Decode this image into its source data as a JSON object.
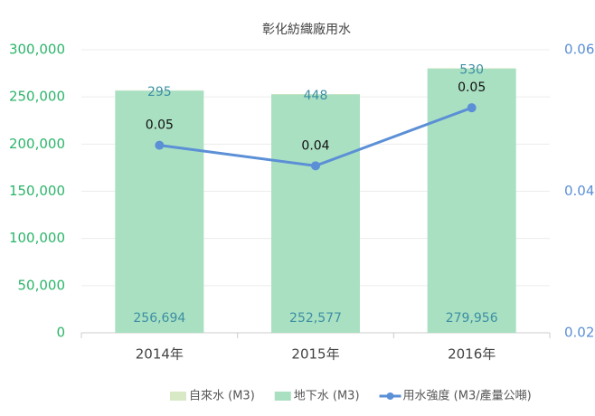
{
  "chart_data": {
    "type": "bar",
    "stacked": true,
    "title": "彰化紡織廠用水",
    "categories": [
      "2014年",
      "2015年",
      "2016年"
    ],
    "series": [
      {
        "name": "自來水 (M3)",
        "color": "#d8e9c6",
        "values": [
          295,
          448,
          530
        ]
      },
      {
        "name": "地下水 (M3)",
        "color": "#a9e0c2",
        "values": [
          256694,
          252577,
          279956
        ],
        "value_labels": [
          "256,694",
          "252,577",
          "279,956"
        ]
      },
      {
        "name": "用水強度 (M3/產量公噸)",
        "type": "line",
        "axis": "y2",
        "color": "#5b8fd6",
        "values": [
          0.0465,
          0.0436,
          0.0518
        ],
        "value_labels": [
          "0.05",
          "0.04",
          "0.05"
        ]
      }
    ],
    "ylim": [
      0,
      300000
    ],
    "yticks": [
      0,
      {
        "value": 50000,
        "label": "50,000"
      },
      {
        "value": 100000,
        "label": "100,000"
      },
      {
        "value": 150000,
        "label": "150,000"
      },
      {
        "value": 200000,
        "label": "200,000"
      },
      {
        "value": 250000,
        "label": "250,000"
      },
      {
        "value": 300000,
        "label": "300,000"
      }
    ],
    "y2lim": [
      0.02,
      0.06
    ],
    "y2ticks": [
      0.02,
      0.04,
      0.06
    ],
    "grid": true,
    "legend": "bottom"
  }
}
